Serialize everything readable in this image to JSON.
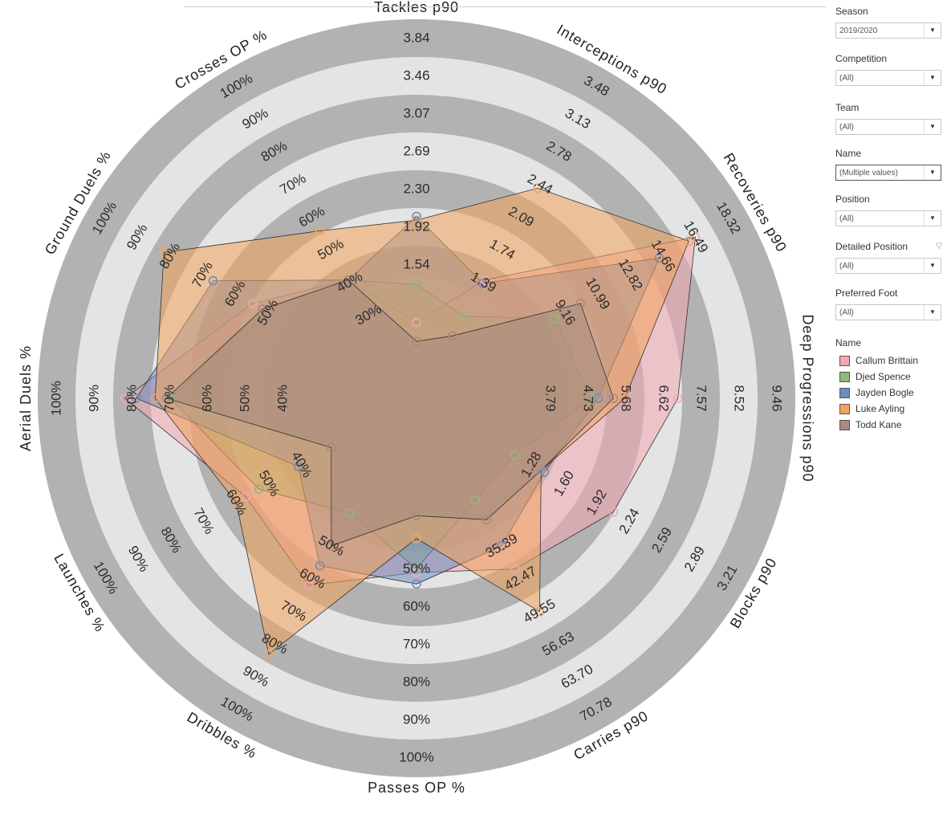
{
  "filters": [
    {
      "label": "Season",
      "value": "2019/2020"
    },
    {
      "label": "Competition",
      "value": "(All)"
    },
    {
      "label": "Team",
      "value": "(All)"
    },
    {
      "label": "Name",
      "value": "(Multiple values)"
    },
    {
      "label": "Position",
      "value": "(All)"
    },
    {
      "label": "Detailed Position",
      "value": "(All)"
    },
    {
      "label": "Preferred Foot",
      "value": "(All)"
    }
  ],
  "legend": {
    "title": "Name",
    "items": [
      {
        "name": "Callum Brittain",
        "color": "#f2a7b1"
      },
      {
        "name": "Djed Spence",
        "color": "#8fb87a"
      },
      {
        "name": "Jayden Bogle",
        "color": "#6b8cc0"
      },
      {
        "name": "Luke Ayling",
        "color": "#f2a35b"
      },
      {
        "name": "Todd Kane",
        "color": "#a88a7e"
      }
    ]
  },
  "chart_data": {
    "type": "radar",
    "axes": [
      {
        "label": "Tackles p90",
        "ticks": [
          "1.54",
          "1.92",
          "2.30",
          "2.69",
          "3.07",
          "3.46",
          "3.84"
        ]
      },
      {
        "label": "Interceptions p90",
        "ticks": [
          "1.39",
          "1.74",
          "2.09",
          "2.44",
          "2.78",
          "3.13",
          "3.48"
        ]
      },
      {
        "label": "Recoveries p90",
        "ticks": [
          "9.16",
          "10.99",
          "12.82",
          "14.66",
          "16.49",
          "18.32"
        ]
      },
      {
        "label": "Deep Progressions p90",
        "ticks": [
          "3.79",
          "4.73",
          "5.68",
          "6.62",
          "7.57",
          "8.52",
          "9.46"
        ]
      },
      {
        "label": "Blocks p90",
        "ticks": [
          "1.28",
          "1.60",
          "1.92",
          "2.24",
          "2.59",
          "2.89",
          "3.21"
        ]
      },
      {
        "label": "Carries p90",
        "ticks": [
          "35.39",
          "42.47",
          "49.55",
          "56.63",
          "63.70",
          "70.78"
        ]
      },
      {
        "label": "Passes OP %",
        "ticks": [
          "50%",
          "60%",
          "70%",
          "80%",
          "90%",
          "100%"
        ]
      },
      {
        "label": "Dribbles %",
        "ticks": [
          "50%",
          "60%",
          "70%",
          "80%",
          "90%",
          "100%"
        ]
      },
      {
        "label": "Launches %",
        "ticks": [
          "40%",
          "50%",
          "60%",
          "70%",
          "80%",
          "90%",
          "100%"
        ]
      },
      {
        "label": "Aerial Duels %",
        "ticks": [
          "40%",
          "50%",
          "60%",
          "70%",
          "80%",
          "90%",
          "100%"
        ]
      },
      {
        "label": "Ground Duels %",
        "ticks": [
          "50%",
          "60%",
          "70%",
          "80%",
          "90%",
          "100%"
        ]
      },
      {
        "label": "Crosses OP %",
        "ticks": [
          "30%",
          "40%",
          "50%",
          "60%",
          "70%",
          "80%",
          "90%",
          "100%"
        ]
      }
    ],
    "series": [
      {
        "name": "Callum Brittain",
        "values": [
          0.2,
          0.36,
          0.85,
          0.69,
          0.6,
          0.52,
          0.46,
          0.57,
          0.52,
          0.77,
          0.5,
          0.36
        ]
      },
      {
        "name": "Djed Spence",
        "values": [
          0.3,
          0.25,
          0.42,
          0.46,
          0.3,
          0.31,
          0.45,
          0.35,
          0.48,
          0.65,
          0.47,
          0.36
        ]
      },
      {
        "name": "Jayden Bogle",
        "values": [
          0.48,
          0.35,
          0.74,
          0.48,
          0.39,
          0.45,
          0.49,
          0.51,
          0.36,
          0.74,
          0.62,
          0.36
        ]
      },
      {
        "name": "Luke Ayling",
        "values": [
          0.47,
          0.64,
          0.83,
          0.55,
          0.38,
          0.65,
          0.37,
          0.78,
          0.55,
          0.69,
          0.77,
          0.51
        ]
      },
      {
        "name": "Todd Kane",
        "values": [
          0.15,
          0.19,
          0.5,
          0.52,
          0.38,
          0.37,
          0.31,
          0.45,
          0.26,
          0.66,
          0.47,
          0.36
        ]
      }
    ]
  }
}
